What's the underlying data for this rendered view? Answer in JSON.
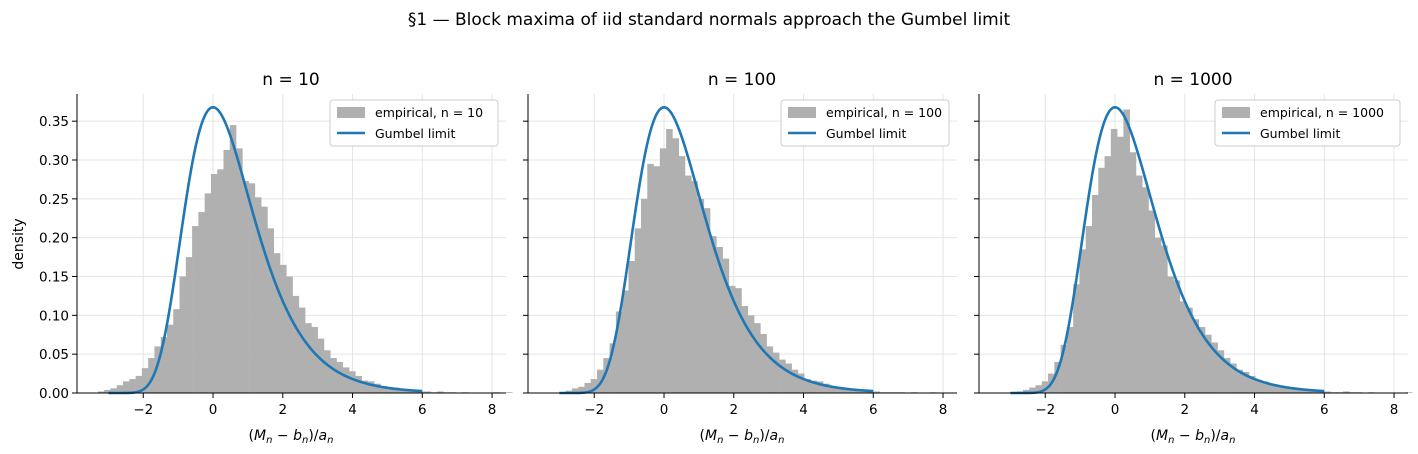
{
  "suptitle": "§1 — Block maxima of iid standard normals approach the Gumbel limit",
  "colors": {
    "histogram": "#b0b0b0",
    "curve": "#1f77b4",
    "grid": "#e5e5e5"
  },
  "chart_data": [
    {
      "type": "bar",
      "title": "n = 10",
      "xlabel": "(M_n − b_n)/a_n",
      "ylabel": "density",
      "xlim": [
        -3.9,
        8.4
      ],
      "ylim": [
        0,
        0.385
      ],
      "xticks": [
        -2,
        0,
        2,
        4,
        6,
        8
      ],
      "xtick_labels": [
        "−2",
        "0",
        "2",
        "4",
        "6",
        "8"
      ],
      "yticks": [
        0,
        0.05,
        0.1,
        0.15,
        0.2,
        0.25,
        0.3,
        0.35
      ],
      "ytick_labels": [
        "0.00",
        "0.05",
        "0.10",
        "0.15",
        "0.20",
        "0.25",
        "0.30",
        "0.35"
      ],
      "grid": true,
      "legend": {
        "loc": "upper right",
        "entries": [
          {
            "label": "empirical, n = 10",
            "kind": "patch"
          },
          {
            "label": "Gumbel limit",
            "kind": "line"
          }
        ]
      },
      "series": [
        {
          "name": "empirical, n = 10",
          "kind": "histogram",
          "bin_start": -3.3,
          "bin_width": 0.18,
          "values": [
            0.002,
            0.004,
            0.006,
            0.01,
            0.015,
            0.018,
            0.022,
            0.032,
            0.045,
            0.06,
            0.072,
            0.088,
            0.108,
            0.15,
            0.175,
            0.215,
            0.233,
            0.257,
            0.282,
            0.288,
            0.313,
            0.345,
            0.315,
            0.273,
            0.27,
            0.252,
            0.24,
            0.212,
            0.18,
            0.165,
            0.15,
            0.125,
            0.11,
            0.09,
            0.085,
            0.07,
            0.055,
            0.045,
            0.04,
            0.033,
            0.028,
            0.022,
            0.016,
            0.015,
            0.012,
            0.009,
            0.006,
            0.007,
            0.004,
            0.003,
            0.003,
            0.002,
            0.002,
            0.001,
            0.002,
            0.001,
            0.001,
            0.0,
            0.001,
            0.0,
            0.0,
            0.0,
            0.0,
            0.001,
            0.0,
            0.001
          ]
        },
        {
          "name": "Gumbel limit",
          "kind": "line",
          "x_range": [
            -3,
            6
          ]
        }
      ]
    },
    {
      "type": "bar",
      "title": "n = 100",
      "xlabel": "(M_n − b_n)/a_n",
      "xlim": [
        -3.9,
        8.4
      ],
      "ylim": [
        0,
        0.385
      ],
      "xticks": [
        -2,
        0,
        2,
        4,
        6,
        8
      ],
      "xtick_labels": [
        "−2",
        "0",
        "2",
        "4",
        "6",
        "8"
      ],
      "yticks": [
        0,
        0.05,
        0.1,
        0.15,
        0.2,
        0.25,
        0.3,
        0.35
      ],
      "grid": true,
      "legend": {
        "loc": "upper right",
        "entries": [
          {
            "label": "empirical, n = 100",
            "kind": "patch"
          },
          {
            "label": "Gumbel limit",
            "kind": "line"
          }
        ]
      },
      "series": [
        {
          "name": "empirical, n = 100",
          "kind": "histogram",
          "bin_start": -3.0,
          "bin_width": 0.18,
          "values": [
            0.001,
            0.003,
            0.006,
            0.008,
            0.013,
            0.018,
            0.03,
            0.045,
            0.064,
            0.105,
            0.132,
            0.17,
            0.212,
            0.25,
            0.295,
            0.292,
            0.315,
            0.34,
            0.328,
            0.305,
            0.28,
            0.273,
            0.25,
            0.238,
            0.202,
            0.188,
            0.173,
            0.138,
            0.135,
            0.112,
            0.1,
            0.09,
            0.076,
            0.06,
            0.052,
            0.043,
            0.038,
            0.03,
            0.025,
            0.018,
            0.016,
            0.015,
            0.012,
            0.009,
            0.008,
            0.006,
            0.004,
            0.004,
            0.003,
            0.002,
            0.002,
            0.001,
            0.001,
            0.001,
            0.001,
            0.0,
            0.001,
            0.0,
            0.0,
            0.001,
            0.0,
            0.0,
            0.0,
            0.0,
            0.0
          ]
        },
        {
          "name": "Gumbel limit",
          "kind": "line",
          "x_range": [
            -3,
            6
          ]
        }
      ]
    },
    {
      "type": "bar",
      "title": "n = 1000",
      "xlabel": "(M_n − b_n)/a_n",
      "xlim": [
        -3.9,
        8.4
      ],
      "ylim": [
        0,
        0.385
      ],
      "xticks": [
        -2,
        0,
        2,
        4,
        6,
        8
      ],
      "xtick_labels": [
        "−2",
        "0",
        "2",
        "4",
        "6",
        "8"
      ],
      "yticks": [
        0,
        0.05,
        0.1,
        0.15,
        0.2,
        0.25,
        0.3,
        0.35
      ],
      "grid": true,
      "legend": {
        "loc": "upper right",
        "entries": [
          {
            "label": "empirical, n = 1000",
            "kind": "patch"
          },
          {
            "label": "Gumbel limit",
            "kind": "line"
          }
        ]
      },
      "series": [
        {
          "name": "empirical, n = 1000",
          "kind": "histogram",
          "bin_start": -3.0,
          "bin_width": 0.18,
          "values": [
            0.001,
            0.002,
            0.004,
            0.007,
            0.01,
            0.015,
            0.025,
            0.04,
            0.062,
            0.085,
            0.14,
            0.185,
            0.215,
            0.255,
            0.29,
            0.305,
            0.34,
            0.33,
            0.365,
            0.31,
            0.28,
            0.265,
            0.235,
            0.2,
            0.19,
            0.15,
            0.145,
            0.118,
            0.11,
            0.095,
            0.085,
            0.075,
            0.065,
            0.055,
            0.045,
            0.038,
            0.03,
            0.027,
            0.022,
            0.017,
            0.015,
            0.012,
            0.01,
            0.008,
            0.006,
            0.005,
            0.004,
            0.003,
            0.003,
            0.002,
            0.002,
            0.001,
            0.001,
            0.002,
            0.001,
            0.001,
            0.0,
            0.001,
            0.0,
            0.0,
            0.0,
            0.0,
            0.0,
            0.001,
            0.0
          ]
        },
        {
          "name": "Gumbel limit",
          "kind": "line",
          "x_range": [
            -3,
            6
          ]
        }
      ]
    }
  ]
}
